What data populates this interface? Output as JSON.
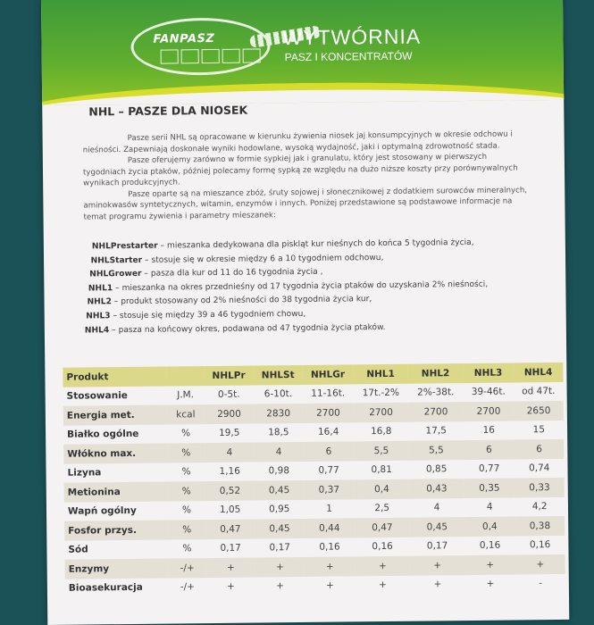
{
  "header": {
    "logo_text": "FANPASZ",
    "title": "WYTWÓRNIA",
    "subtitle": "PASZ I KONCENTRATÓW",
    "colors": {
      "green": "#4fa235",
      "yellow": "#d8dc2a"
    }
  },
  "heading": "NHL – PASZE DLA NIOSEK",
  "intro": [
    "Pasze serii NHL są opracowane w kierunku żywienia niosek jaj konsumpcyjnych w okresie odchowu i nieśności. Zapewniają doskonałe wyniki hodowlane, wysoką wydajność, jaki i optymalną zdrowotność stada.",
    "Pasze oferujemy zarówno w formie sypkiej jak i granulatu, który jest stosowany w pierwszych tygodniach życia ptaków, później polecamy formę sypką ze względu na dużo niższe koszty przy porównywalnych wynikach produkcyjnych.",
    "Pasze oparte są na mieszance zbóż, śruty sojowej i słonecznikowej z dodatkiem surowców mineralnych, aminokwasów syntetycznych, witamin, enzymów i innych. Poniżej przedstawione są podstawowe informacje na temat programu żywienia i parametry mieszanek:"
  ],
  "products": [
    {
      "name": "NHLPrestarter",
      "desc": " – mieszanka dedykowana dla piskląt kur nieśnych do końca 5 tygodnia życia,"
    },
    {
      "name": "NHLStarter",
      "desc": " – stosuje się w okresie między 6 a 10 tygodniem odchowu,"
    },
    {
      "name": "NHLGrower",
      "desc": " – pasza dla kur od 11 do 16 tygodnia życia ,"
    },
    {
      "name": "NHL1",
      "desc": " – mieszanka na okres przednieśny od 17 tygodnia życia ptaków do uzyskania  2% nieśności,"
    },
    {
      "name": "NHL2",
      "desc": " – produkt stosowany od 2% nieśności do 38 tygodnia życia kur,"
    },
    {
      "name": "NHL3",
      "desc": " – stosuje się między 39 a 46 tygodniem chowu,"
    },
    {
      "name": "NHL4",
      "desc": " – pasza na końcowy okres, podawana od 47 tygodnia życia ptaków."
    }
  ],
  "table": {
    "header": [
      "Produkt",
      "",
      "NHLPr",
      "NHLSt",
      "NHLGr",
      "NHL1",
      "NHL2",
      "NHL3",
      "NHL4"
    ],
    "rows": [
      [
        "Stosowanie",
        "J.M.",
        "0-5t.",
        "6-10t.",
        "11-16t.",
        "17t.-2%",
        "2%-38t.",
        "39-46t.",
        "od 47t."
      ],
      [
        "Energia met.",
        "kcal",
        "2900",
        "2830",
        "2700",
        "2700",
        "2700",
        "2700",
        "2650"
      ],
      [
        "Białko ogólne",
        "%",
        "19,5",
        "18,5",
        "16,4",
        "16,8",
        "17,5",
        "16",
        "15"
      ],
      [
        "Włókno max.",
        "%",
        "4",
        "4",
        "6",
        "5,5",
        "5,5",
        "6",
        "6"
      ],
      [
        "Lizyna",
        "%",
        "1,16",
        "0,98",
        "0,77",
        "0,81",
        "0,85",
        "0,77",
        "0,74"
      ],
      [
        "Metionina",
        "%",
        "0,52",
        "0,45",
        "0,37",
        "0,4",
        "0,43",
        "0,35",
        "0,33"
      ],
      [
        "Wapń ogólny",
        "%",
        "1,05",
        "0,95",
        "1",
        "2,5",
        "4",
        "4",
        "4,2"
      ],
      [
        "Fosfor przys.",
        "%",
        "0,47",
        "0,45",
        "0,44",
        "0,47",
        "0,45",
        "0,4",
        "0,38"
      ],
      [
        "Sód",
        "%",
        "0,17",
        "0,17",
        "0,16",
        "0,16",
        "0,17",
        "0,16",
        "0,16"
      ],
      [
        "Enzymy",
        "-/+",
        "+",
        "+",
        "+",
        "+",
        "+",
        "+",
        "+"
      ],
      [
        "Bioasekuracja",
        "-/+",
        "+",
        "+",
        "+",
        "+",
        "+",
        "+",
        "-"
      ]
    ]
  }
}
